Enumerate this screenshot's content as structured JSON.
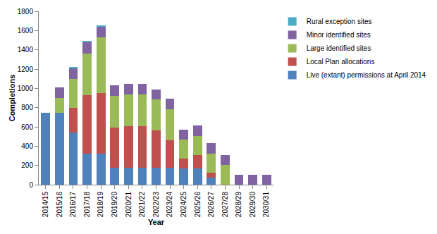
{
  "chart_data": {
    "type": "bar",
    "stacked": true,
    "grid": false,
    "legend": "right",
    "x_label": "Year",
    "y_label": "Completions",
    "categories": [
      "2014/15",
      "2015/16",
      "2016/17",
      "2017/18",
      "2018/19",
      "2019/20",
      "2020/21",
      "2021/22",
      "2022/23",
      "2023/24",
      "2024/25",
      "2025/26",
      "2026/27",
      "2027/28",
      "2028/29",
      "2029/30",
      "2030/31"
    ],
    "ylim": [
      0,
      1800
    ],
    "yticks": [
      0,
      200,
      400,
      600,
      800,
      1000,
      1200,
      1400,
      1600,
      1800
    ],
    "series": [
      {
        "name": "Live (extant) permissions at April 2014",
        "color": "#4F81BD",
        "values": [
          750,
          750,
          540,
          320,
          320,
          175,
          175,
          175,
          175,
          175,
          165,
          165,
          75,
          0,
          0,
          0,
          0
        ]
      },
      {
        "name": "Local Plan allocations",
        "color": "#C0504D",
        "values": [
          0,
          0,
          260,
          610,
          630,
          415,
          430,
          430,
          390,
          285,
          105,
          140,
          50,
          0,
          0,
          0,
          0
        ]
      },
      {
        "name": "Large identified sites",
        "color": "#9BBB59",
        "values": [
          0,
          150,
          300,
          430,
          580,
          330,
          330,
          330,
          320,
          325,
          195,
          200,
          195,
          205,
          0,
          0,
          0
        ]
      },
      {
        "name": "Minor identified sites",
        "color": "#8064A2",
        "values": [
          0,
          110,
          110,
          120,
          110,
          110,
          110,
          110,
          105,
          105,
          105,
          110,
          110,
          105,
          105,
          105,
          105
        ]
      },
      {
        "name": "Rural exception sites",
        "color": "#4BACC6",
        "values": [
          0,
          0,
          15,
          10,
          15,
          0,
          0,
          0,
          0,
          0,
          0,
          0,
          0,
          0,
          0,
          0,
          0
        ]
      }
    ]
  }
}
